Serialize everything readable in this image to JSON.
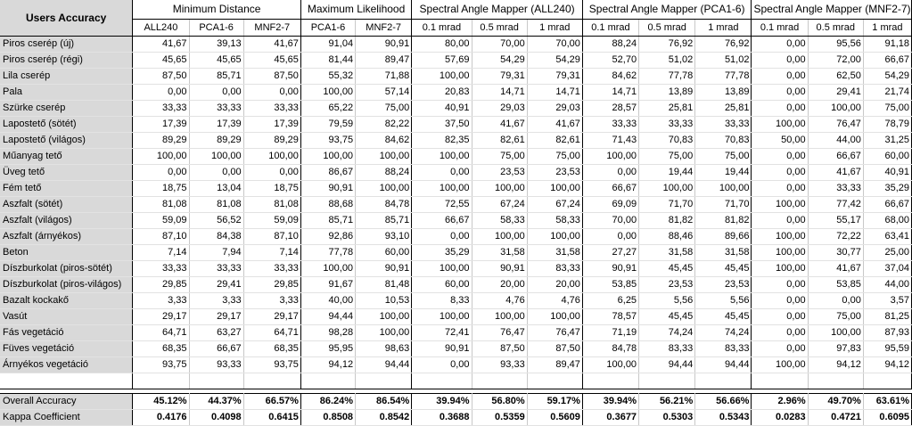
{
  "corner_title": "Users Accuracy",
  "groups": [
    {
      "label": "Minimum Distance",
      "span": 3
    },
    {
      "label": "Maximum Likelihood",
      "span": 2
    },
    {
      "label": "Spectral Angle Mapper (ALL240)",
      "span": 3
    },
    {
      "label": "Spectral Angle Mapper (PCA1-6)",
      "span": 3
    },
    {
      "label": "Spectral Angle Mapper (MNF2-7)",
      "span": 3
    }
  ],
  "subheaders": [
    "ALL240",
    "PCA1-6",
    "MNF2-7",
    "PCA1-6",
    "MNF2-7",
    "0.1 mrad",
    "0.5 mrad",
    "1 mrad",
    "0.1 mrad",
    "0.5 mrad",
    "1 mrad",
    "0.1 mrad",
    "0.5 mrad",
    "1 mrad"
  ],
  "rows": [
    {
      "label": "Piros cserép (új)",
      "values": [
        "41,67",
        "39,13",
        "41,67",
        "91,04",
        "90,91",
        "80,00",
        "70,00",
        "70,00",
        "88,24",
        "76,92",
        "76,92",
        "0,00",
        "95,56",
        "91,18"
      ]
    },
    {
      "label": "Piros cserép (régi)",
      "values": [
        "45,65",
        "45,65",
        "45,65",
        "81,44",
        "89,47",
        "57,69",
        "54,29",
        "54,29",
        "52,70",
        "51,02",
        "51,02",
        "0,00",
        "72,00",
        "66,67"
      ]
    },
    {
      "label": "Lila cserép",
      "values": [
        "87,50",
        "85,71",
        "87,50",
        "55,32",
        "71,88",
        "100,00",
        "79,31",
        "79,31",
        "84,62",
        "77,78",
        "77,78",
        "0,00",
        "62,50",
        "54,29"
      ]
    },
    {
      "label": "Pala",
      "values": [
        "0,00",
        "0,00",
        "0,00",
        "100,00",
        "57,14",
        "20,83",
        "14,71",
        "14,71",
        "14,71",
        "13,89",
        "13,89",
        "0,00",
        "29,41",
        "21,74"
      ]
    },
    {
      "label": "Szürke cserép",
      "values": [
        "33,33",
        "33,33",
        "33,33",
        "65,22",
        "75,00",
        "40,91",
        "29,03",
        "29,03",
        "28,57",
        "25,81",
        "25,81",
        "0,00",
        "100,00",
        "75,00"
      ]
    },
    {
      "label": "Lapostető (sötét)",
      "values": [
        "17,39",
        "17,39",
        "17,39",
        "79,59",
        "82,22",
        "37,50",
        "41,67",
        "41,67",
        "33,33",
        "33,33",
        "33,33",
        "100,00",
        "76,47",
        "78,79"
      ]
    },
    {
      "label": "Lapostető (világos)",
      "values": [
        "89,29",
        "89,29",
        "89,29",
        "93,75",
        "84,62",
        "82,35",
        "82,61",
        "82,61",
        "71,43",
        "70,83",
        "70,83",
        "50,00",
        "44,00",
        "31,25"
      ]
    },
    {
      "label": "Műanyag tető",
      "values": [
        "100,00",
        "100,00",
        "100,00",
        "100,00",
        "100,00",
        "100,00",
        "75,00",
        "75,00",
        "100,00",
        "75,00",
        "75,00",
        "0,00",
        "66,67",
        "60,00"
      ]
    },
    {
      "label": "Üveg tető",
      "values": [
        "0,00",
        "0,00",
        "0,00",
        "86,67",
        "88,24",
        "0,00",
        "23,53",
        "23,53",
        "0,00",
        "19,44",
        "19,44",
        "0,00",
        "41,67",
        "40,91"
      ]
    },
    {
      "label": "Fém tető",
      "values": [
        "18,75",
        "13,04",
        "18,75",
        "90,91",
        "100,00",
        "100,00",
        "100,00",
        "100,00",
        "66,67",
        "100,00",
        "100,00",
        "0,00",
        "33,33",
        "35,29"
      ]
    },
    {
      "label": "Aszfalt (sötét)",
      "values": [
        "81,08",
        "81,08",
        "81,08",
        "88,68",
        "84,78",
        "72,55",
        "67,24",
        "67,24",
        "69,09",
        "71,70",
        "71,70",
        "100,00",
        "77,42",
        "66,67"
      ]
    },
    {
      "label": "Aszfalt (világos)",
      "values": [
        "59,09",
        "56,52",
        "59,09",
        "85,71",
        "85,71",
        "66,67",
        "58,33",
        "58,33",
        "70,00",
        "81,82",
        "81,82",
        "0,00",
        "55,17",
        "68,00"
      ]
    },
    {
      "label": "Aszfalt (árnyékos)",
      "values": [
        "87,10",
        "84,38",
        "87,10",
        "92,86",
        "93,10",
        "0,00",
        "100,00",
        "100,00",
        "0,00",
        "88,46",
        "89,66",
        "100,00",
        "72,22",
        "63,41"
      ]
    },
    {
      "label": "Beton",
      "values": [
        "7,14",
        "7,94",
        "7,14",
        "77,78",
        "60,00",
        "35,29",
        "31,58",
        "31,58",
        "27,27",
        "31,58",
        "31,58",
        "100,00",
        "30,77",
        "25,00"
      ]
    },
    {
      "label": "Díszburkolat (piros-sötét)",
      "values": [
        "33,33",
        "33,33",
        "33,33",
        "100,00",
        "90,91",
        "100,00",
        "90,91",
        "83,33",
        "90,91",
        "45,45",
        "45,45",
        "100,00",
        "41,67",
        "37,04"
      ]
    },
    {
      "label": "Díszburkolat (piros-világos)",
      "values": [
        "29,85",
        "29,41",
        "29,85",
        "91,67",
        "81,48",
        "60,00",
        "20,00",
        "20,00",
        "53,85",
        "23,53",
        "23,53",
        "0,00",
        "53,85",
        "44,00"
      ]
    },
    {
      "label": "Bazalt kockakő",
      "values": [
        "3,33",
        "3,33",
        "3,33",
        "40,00",
        "10,53",
        "8,33",
        "4,76",
        "4,76",
        "6,25",
        "5,56",
        "5,56",
        "0,00",
        "0,00",
        "3,57"
      ]
    },
    {
      "label": "Vasút",
      "values": [
        "29,17",
        "29,17",
        "29,17",
        "94,44",
        "100,00",
        "100,00",
        "100,00",
        "100,00",
        "78,57",
        "45,45",
        "45,45",
        "0,00",
        "75,00",
        "81,25"
      ]
    },
    {
      "label": "Fás vegetáció",
      "values": [
        "64,71",
        "63,27",
        "64,71",
        "98,28",
        "100,00",
        "72,41",
        "76,47",
        "76,47",
        "71,19",
        "74,24",
        "74,24",
        "0,00",
        "100,00",
        "87,93"
      ]
    },
    {
      "label": "Füves vegetáció",
      "values": [
        "68,35",
        "66,67",
        "68,35",
        "95,95",
        "98,63",
        "90,91",
        "87,50",
        "87,50",
        "84,78",
        "83,33",
        "83,33",
        "0,00",
        "97,83",
        "95,59"
      ]
    },
    {
      "label": "Árnyékos vegetáció",
      "values": [
        "93,75",
        "93,33",
        "93,75",
        "94,12",
        "94,44",
        "0,00",
        "93,33",
        "89,47",
        "100,00",
        "94,44",
        "94,44",
        "100,00",
        "94,12",
        "94,12"
      ]
    }
  ],
  "summary": [
    {
      "label": "Overall Accuracy",
      "values": [
        "45.12%",
        "44.37%",
        "66.57%",
        "86.24%",
        "86.54%",
        "39.94%",
        "56.80%",
        "59.17%",
        "39.94%",
        "56.21%",
        "56.66%",
        "2.96%",
        "49.70%",
        "63.61%"
      ]
    },
    {
      "label": "Kappa Coefficient",
      "values": [
        "0.4176",
        "0.4098",
        "0.6415",
        "0.8508",
        "0.8542",
        "0.3688",
        "0.5359",
        "0.5609",
        "0.3677",
        "0.5303",
        "0.5343",
        "0.0283",
        "0.4721",
        "0.6095"
      ]
    }
  ]
}
